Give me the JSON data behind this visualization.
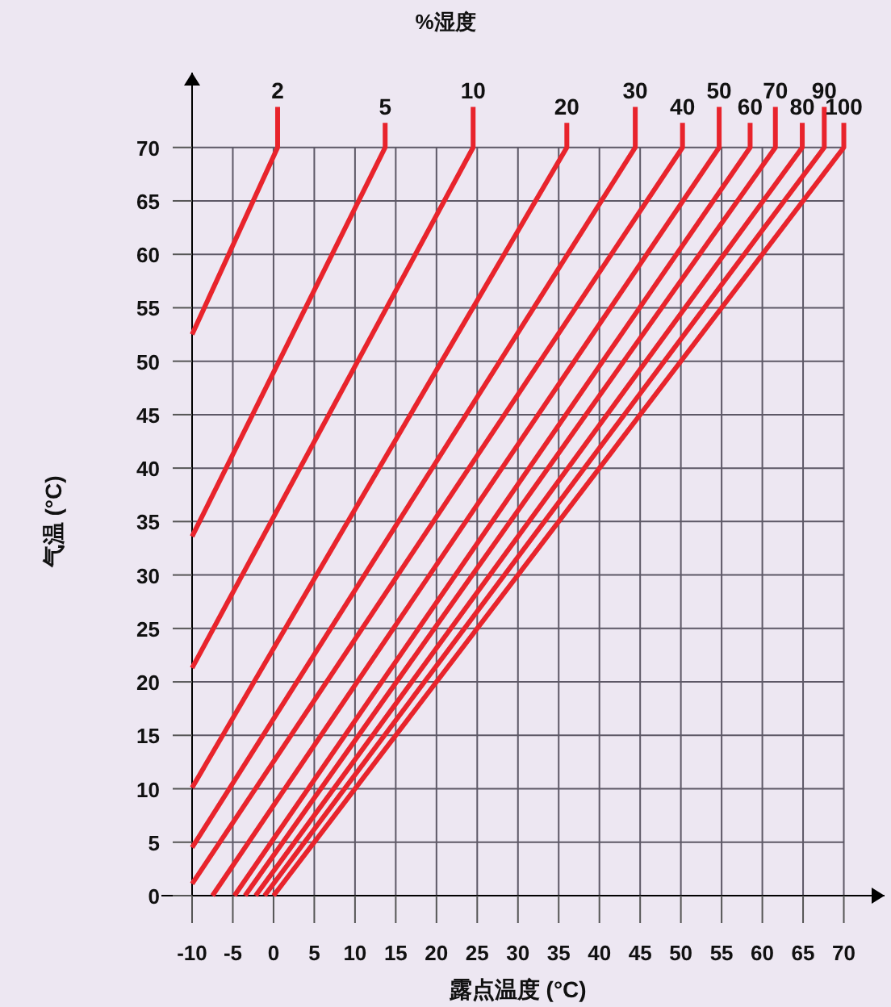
{
  "chart_data": {
    "type": "line",
    "title": "%湿度",
    "xlabel": "露点温度 (°C)",
    "ylabel": "气温 (°C)",
    "xlim": [
      -10,
      75
    ],
    "ylim": [
      0,
      77
    ],
    "xticks": [
      -10,
      -5,
      0,
      5,
      10,
      15,
      20,
      25,
      30,
      35,
      40,
      45,
      50,
      55,
      60,
      65,
      70
    ],
    "yticks": [
      0,
      5,
      10,
      15,
      20,
      25,
      30,
      35,
      40,
      45,
      50,
      55,
      60,
      65,
      70
    ],
    "grid": true,
    "marker": "none",
    "line_style": "solid",
    "series": [
      {
        "name": "2",
        "color": "#e8242c",
        "x": [
          -10,
          0.5,
          0.5
        ],
        "values": [
          52.5,
          70,
          73.8
        ]
      },
      {
        "name": "5",
        "color": "#e8242c",
        "x": [
          -10,
          13.7,
          13.7
        ],
        "values": [
          33.6,
          70,
          72.3
        ]
      },
      {
        "name": "10",
        "color": "#e8242c",
        "x": [
          -10,
          24.5,
          24.5
        ],
        "values": [
          21.3,
          70,
          73.8
        ]
      },
      {
        "name": "20",
        "color": "#e8242c",
        "x": [
          -10,
          36,
          36
        ],
        "values": [
          10.1,
          70,
          72.3
        ]
      },
      {
        "name": "30",
        "color": "#e8242c",
        "x": [
          -10,
          44.4,
          44.4
        ],
        "values": [
          4.5,
          70,
          73.8
        ]
      },
      {
        "name": "40",
        "color": "#e8242c",
        "x": [
          -10,
          50.2,
          50.2
        ],
        "values": [
          1.1,
          70,
          72.3
        ]
      },
      {
        "name": "50",
        "color": "#e8242c",
        "x": [
          -7.5,
          54.7,
          54.7
        ],
        "values": [
          0,
          70,
          73.8
        ]
      },
      {
        "name": "60",
        "color": "#e8242c",
        "x": [
          -4.8,
          58.5,
          58.5
        ],
        "values": [
          0,
          70,
          72.3
        ]
      },
      {
        "name": "70",
        "color": "#e8242c",
        "x": [
          -3.5,
          61.6,
          61.6
        ],
        "values": [
          0,
          70,
          73.8
        ]
      },
      {
        "name": "80",
        "color": "#e8242c",
        "x": [
          -2.2,
          64.9,
          64.9
        ],
        "values": [
          0,
          70,
          72.3
        ]
      },
      {
        "name": "90",
        "color": "#e8242c",
        "x": [
          -1.1,
          67.6,
          67.6
        ],
        "values": [
          0,
          70,
          73.8
        ]
      },
      {
        "name": "100",
        "color": "#e8242c",
        "x": [
          0,
          70,
          70
        ],
        "values": [
          0,
          70,
          72.3
        ]
      }
    ]
  }
}
